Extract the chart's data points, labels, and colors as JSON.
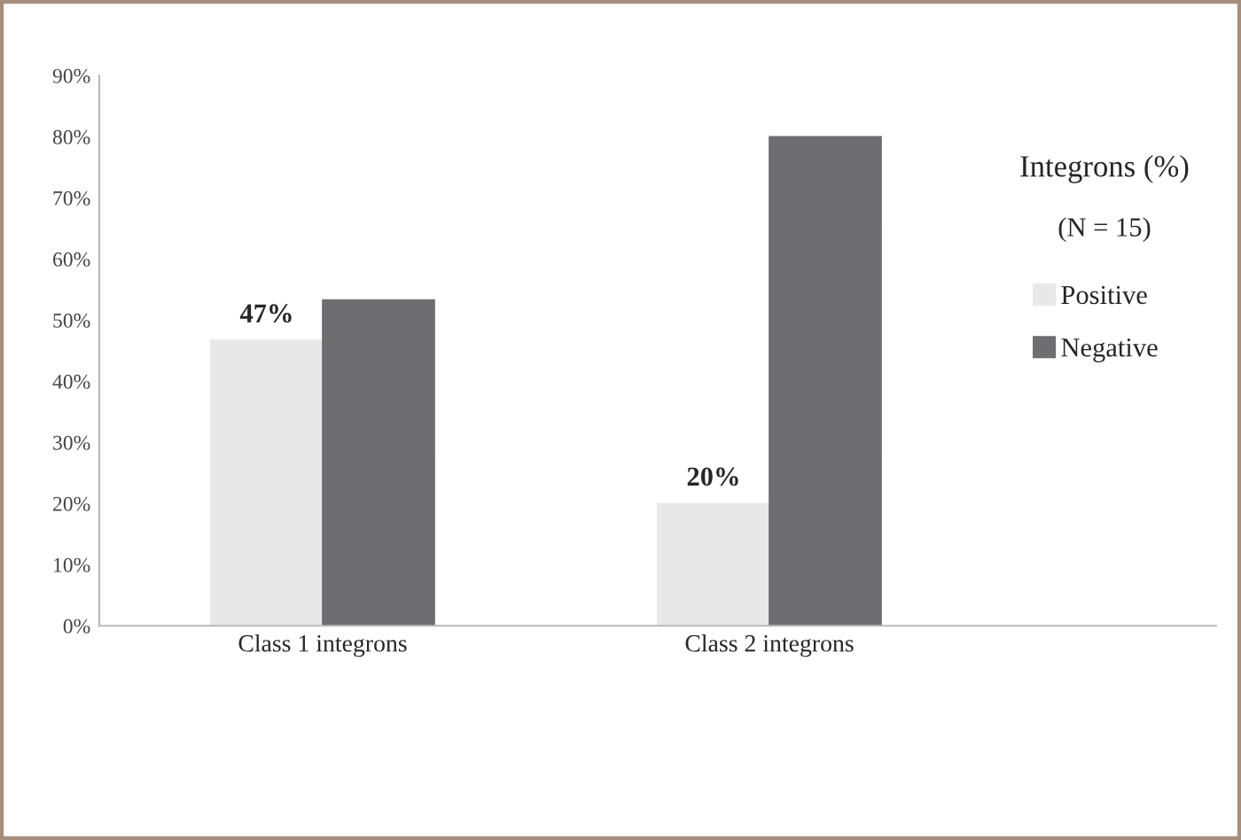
{
  "chart_data": {
    "type": "bar",
    "categories": [
      "Class 1 integrons",
      "Class 2 integrons"
    ],
    "series": [
      {
        "name": "Positive",
        "color": "#e8e8e8",
        "values": [
          46.7,
          20
        ],
        "value_labels": [
          "47%",
          "20%"
        ]
      },
      {
        "name": "Negative",
        "color": "#6e6e70",
        "values": [
          53.3,
          80
        ]
      }
    ],
    "legend_title": "Integrons (%)",
    "annotations": [
      "(N = 15)"
    ],
    "legend": "right",
    "grid": false,
    "ylim": [
      0,
      90
    ],
    "yticks": [
      {
        "value": 0,
        "label": "0%"
      },
      {
        "value": 10,
        "label": "10%"
      },
      {
        "value": 20,
        "label": "20%"
      },
      {
        "value": 30,
        "label": "30%"
      },
      {
        "value": 40,
        "label": "40%"
      },
      {
        "value": 50,
        "label": "50%"
      },
      {
        "value": 60,
        "label": "60%"
      },
      {
        "value": 70,
        "label": "70%"
      },
      {
        "value": 80,
        "label": "80%"
      },
      {
        "value": 90,
        "label": "90%"
      }
    ]
  }
}
